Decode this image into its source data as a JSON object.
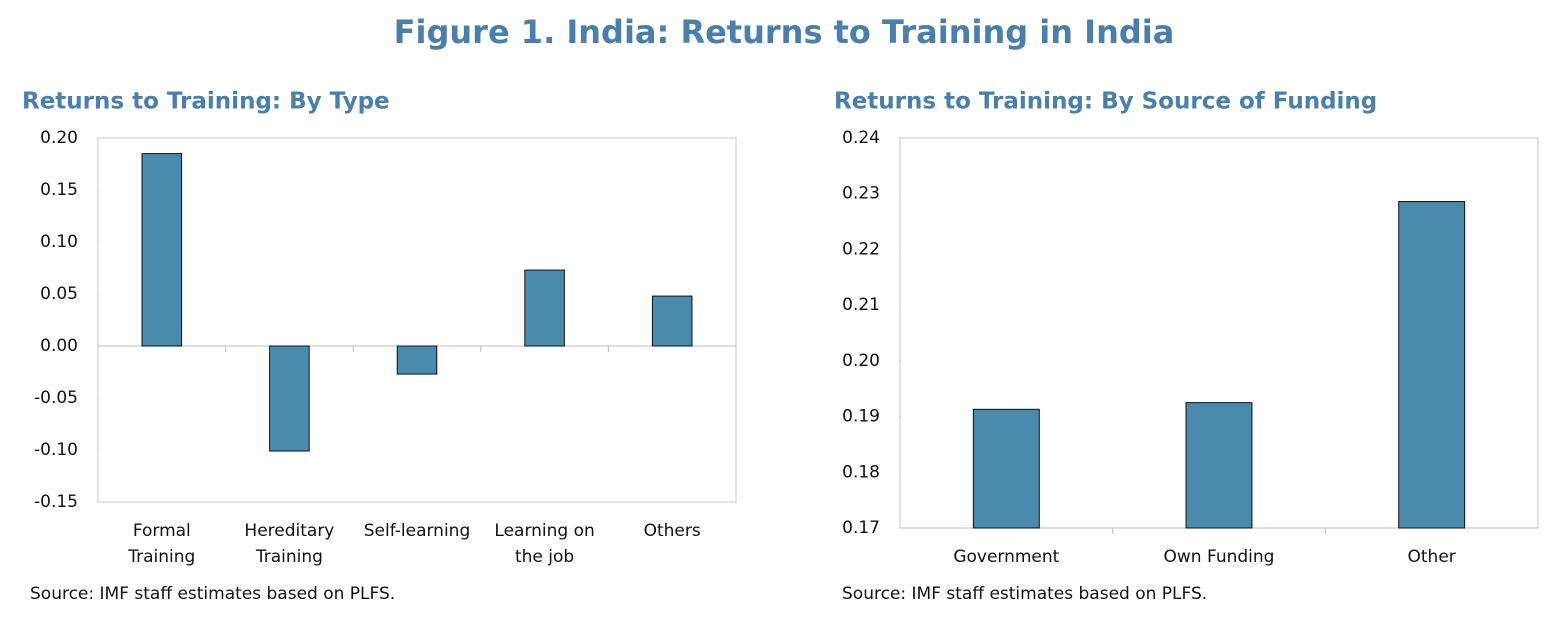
{
  "title": "Figure 1. India: Returns to Training in India",
  "chart_data": [
    {
      "type": "bar",
      "title": "Returns to Training: By Type",
      "categories": [
        "Formal Training",
        "Hereditary Training",
        "Self-learning",
        "Learning on the job",
        "Others"
      ],
      "values": [
        0.185,
        -0.101,
        -0.027,
        0.073,
        0.048
      ],
      "color": "#4a8aad",
      "ylim": [
        -0.15,
        0.2
      ],
      "yticks": [
        {
          "value": 0.2,
          "label": "0.20"
        },
        0.15,
        {
          "value": 0.1,
          "label": "0.10"
        },
        0.05,
        {
          "value": 0,
          "label": "0.00"
        },
        -0.05,
        {
          "value": -0.1,
          "label": "-0.10"
        },
        -0.15
      ],
      "source": "Source: IMF staff estimates based on PLFS."
    },
    {
      "type": "bar",
      "title": "Returns to Training: By Source of Funding",
      "categories": [
        "Government",
        "Own Funding",
        "Other"
      ],
      "values": [
        0.1913,
        0.1925,
        0.2286
      ],
      "color": "#4a8aad",
      "ylim": [
        0.17,
        0.24
      ],
      "yticks": [
        0.24,
        0.23,
        0.22,
        0.21,
        {
          "value": 0.2,
          "label": "0.20"
        },
        0.19,
        0.18,
        0.17
      ],
      "source": "Source: IMF staff estimates based on PLFS."
    }
  ]
}
